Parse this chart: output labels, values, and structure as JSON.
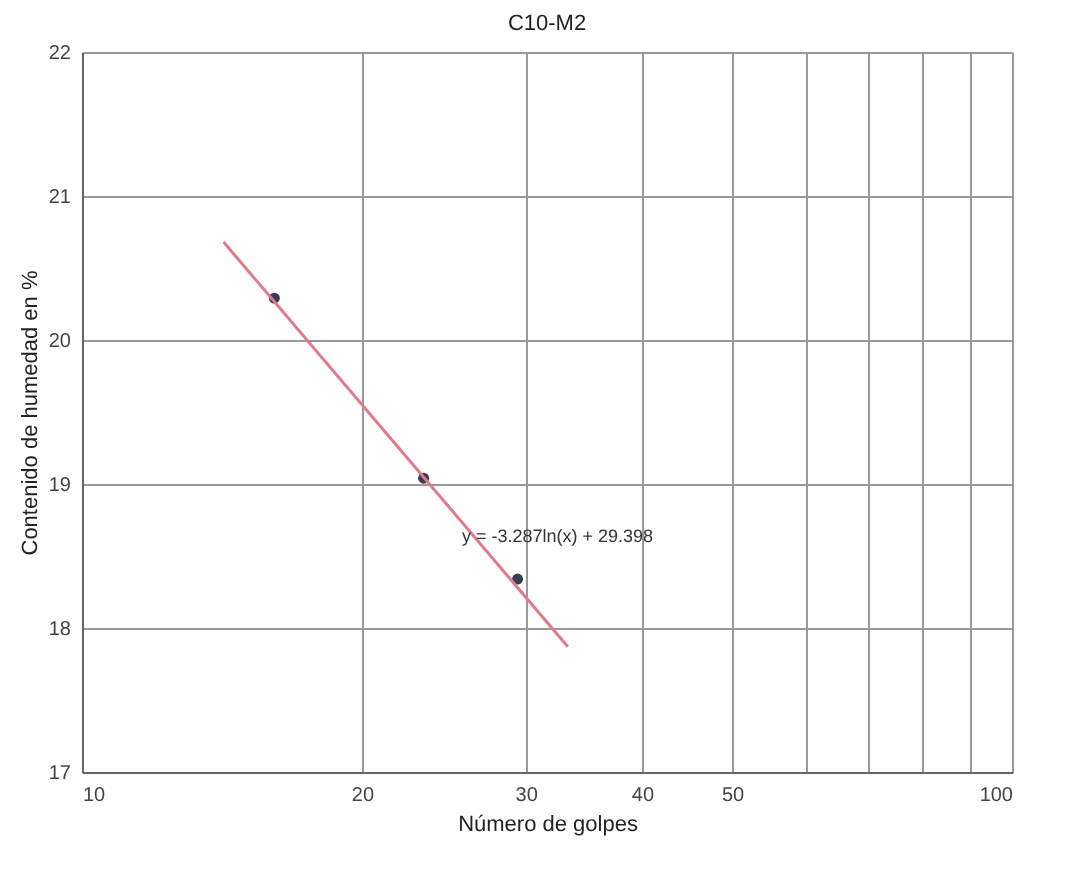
{
  "chart_data": {
    "type": "scatter",
    "title": "C10-M2",
    "xlabel": "Número de golpes",
    "ylabel": "Contenido de humedad en %",
    "log": "x",
    "grid": true,
    "marker": "circle",
    "xlim": [
      10,
      100
    ],
    "xticks": [
      10,
      20,
      30,
      40,
      50,
      {
        "value": 60,
        "label": null
      },
      {
        "value": 70,
        "label": null
      },
      {
        "value": 80,
        "label": null
      },
      {
        "value": 90,
        "label": null
      },
      100
    ],
    "ylim": [
      17,
      22
    ],
    "yticks": [
      17,
      18,
      19,
      20,
      21,
      22
    ],
    "series": [
      {
        "color": "#3a3a50",
        "x": [
          16.1,
          23.3,
          29.4
        ],
        "values": [
          20.29,
          19.04,
          18.34
        ]
      },
      {
        "type": "line",
        "color": "#e07a8a",
        "marker": "none",
        "x": [
          14.2,
          33.3
        ],
        "values": [
          20.68,
          17.87
        ]
      }
    ],
    "annotations": [
      "y = -3.287ln(x) + 29.398"
    ]
  }
}
